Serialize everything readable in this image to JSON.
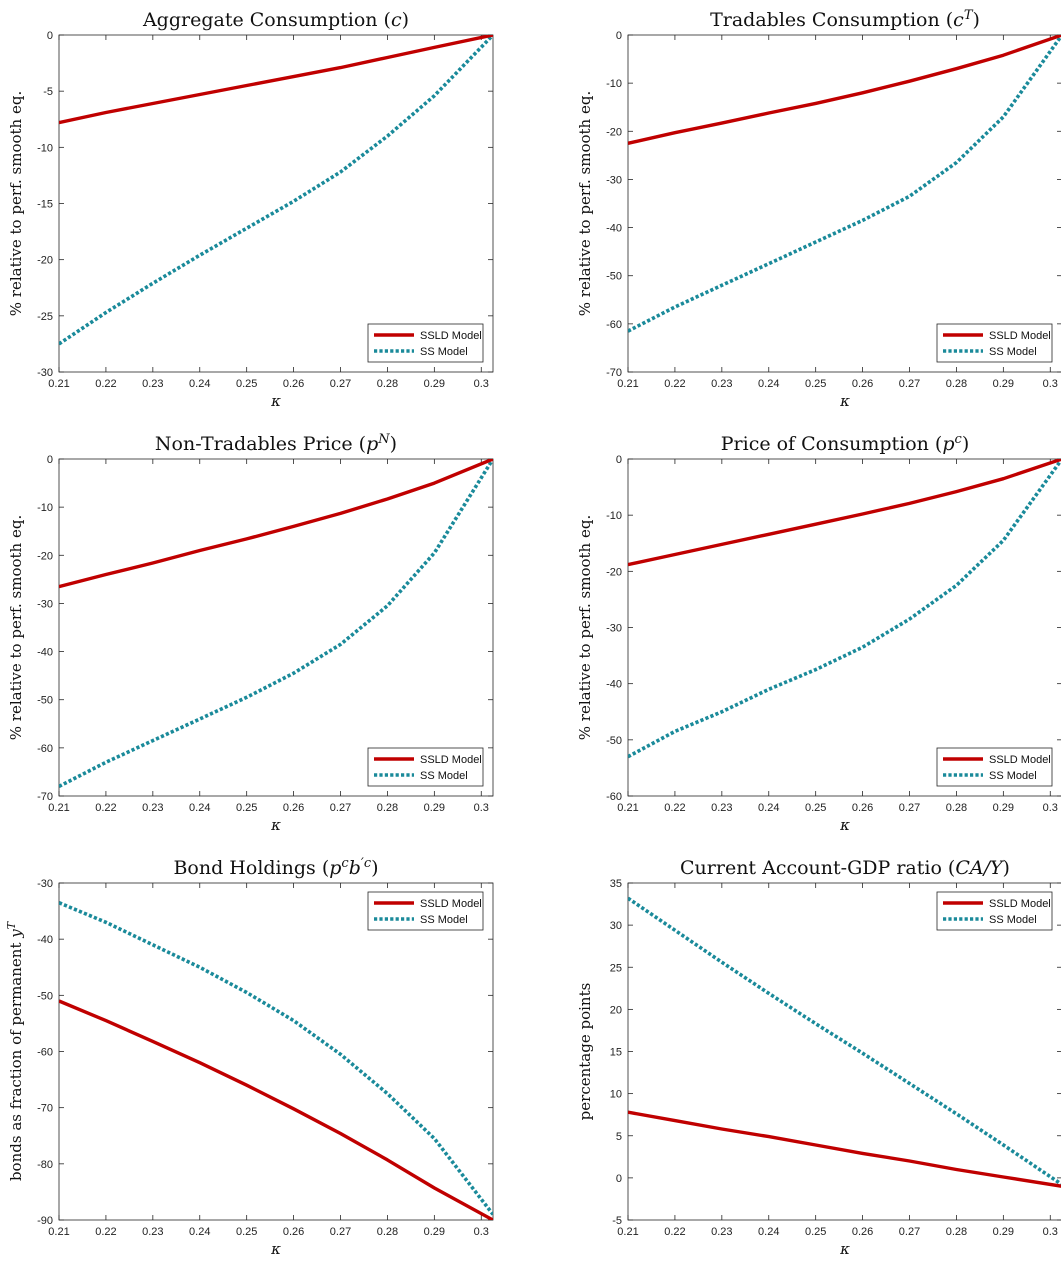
{
  "colors": {
    "sslddark": "#c00000",
    "ss": "#1a8a9a"
  },
  "chart_data": [
    {
      "type": "line",
      "title": "Aggregate Consumption (c)",
      "xlabel": "κ",
      "ylabel": "% relative to perf. smooth eq.",
      "xlim": [
        0.21,
        0.3025
      ],
      "ylim": [
        -30,
        0
      ],
      "x_ticks": [
        "0.21",
        "0.22",
        "0.23",
        "0.24",
        "0.25",
        "0.26",
        "0.27",
        "0.28",
        "0.29",
        "0.3"
      ],
      "y_ticks": [
        "0",
        "-5",
        "-10",
        "-15",
        "-20",
        "-25",
        "-30"
      ],
      "legend": "bottom-right",
      "x": [
        0.21,
        0.22,
        0.23,
        0.24,
        0.25,
        0.26,
        0.27,
        0.28,
        0.29,
        0.3025
      ],
      "series": [
        {
          "name": "SSLD Model",
          "style": "solid",
          "values": [
            -7.8,
            -6.9,
            -6.1,
            -5.3,
            -4.5,
            -3.7,
            -2.9,
            -2.0,
            -1.1,
            0
          ]
        },
        {
          "name": "SS Model",
          "style": "dotted",
          "values": [
            -27.5,
            -24.7,
            -22.1,
            -19.6,
            -17.2,
            -14.8,
            -12.2,
            -9.0,
            -5.4,
            0
          ]
        }
      ]
    },
    {
      "type": "line",
      "title": "Tradables Consumption (cT)",
      "xlabel": "κ",
      "ylabel": "% relative to perf. smooth eq.",
      "xlim": [
        0.21,
        0.3025
      ],
      "ylim": [
        -70,
        0
      ],
      "x_ticks": [
        "0.21",
        "0.22",
        "0.23",
        "0.24",
        "0.25",
        "0.26",
        "0.27",
        "0.28",
        "0.29",
        "0.3"
      ],
      "y_ticks": [
        "0",
        "-10",
        "-20",
        "-30",
        "-40",
        "-50",
        "-60",
        "-70"
      ],
      "legend": "bottom-right",
      "x": [
        0.21,
        0.22,
        0.23,
        0.24,
        0.25,
        0.26,
        0.27,
        0.28,
        0.29,
        0.3025
      ],
      "series": [
        {
          "name": "SSLD Model",
          "style": "solid",
          "values": [
            -22.5,
            -20.3,
            -18.3,
            -16.2,
            -14.2,
            -12.0,
            -9.6,
            -7.0,
            -4.2,
            0
          ]
        },
        {
          "name": "SS Model",
          "style": "dotted",
          "values": [
            -61.5,
            -56.5,
            -52.0,
            -47.5,
            -43.0,
            -38.5,
            -33.5,
            -26.5,
            -17.0,
            0
          ]
        }
      ]
    },
    {
      "type": "line",
      "title": "Non-Tradables Price (pN)",
      "xlabel": "κ",
      "ylabel": "% relative to perf. smooth eq.",
      "xlim": [
        0.21,
        0.3025
      ],
      "ylim": [
        -70,
        0
      ],
      "x_ticks": [
        "0.21",
        "0.22",
        "0.23",
        "0.24",
        "0.25",
        "0.26",
        "0.27",
        "0.28",
        "0.29",
        "0.3"
      ],
      "y_ticks": [
        "0",
        "-10",
        "-20",
        "-30",
        "-40",
        "-50",
        "-60",
        "-70"
      ],
      "legend": "bottom-right",
      "x": [
        0.21,
        0.22,
        0.23,
        0.24,
        0.25,
        0.26,
        0.27,
        0.28,
        0.29,
        0.3025
      ],
      "series": [
        {
          "name": "SSLD Model",
          "style": "solid",
          "values": [
            -26.5,
            -24.0,
            -21.6,
            -19.0,
            -16.6,
            -14.0,
            -11.3,
            -8.3,
            -5.0,
            0
          ]
        },
        {
          "name": "SS Model",
          "style": "dotted",
          "values": [
            -68.0,
            -63.0,
            -58.5,
            -54.0,
            -49.5,
            -44.5,
            -38.5,
            -30.5,
            -19.5,
            0
          ]
        }
      ]
    },
    {
      "type": "line",
      "title": "Price of Consumption (pc)",
      "xlabel": "κ",
      "ylabel": "% relative to perf. smooth eq.",
      "xlim": [
        0.21,
        0.3025
      ],
      "ylim": [
        -60,
        0
      ],
      "x_ticks": [
        "0.21",
        "0.22",
        "0.23",
        "0.24",
        "0.25",
        "0.26",
        "0.27",
        "0.28",
        "0.29",
        "0.3"
      ],
      "y_ticks": [
        "0",
        "-10",
        "-20",
        "-30",
        "-40",
        "-50",
        "-60"
      ],
      "legend": "bottom-right",
      "x": [
        0.21,
        0.22,
        0.23,
        0.24,
        0.25,
        0.26,
        0.27,
        0.28,
        0.29,
        0.3025
      ],
      "series": [
        {
          "name": "SSLD Model",
          "style": "solid",
          "values": [
            -18.8,
            -17.0,
            -15.2,
            -13.4,
            -11.6,
            -9.8,
            -7.9,
            -5.8,
            -3.5,
            0
          ]
        },
        {
          "name": "SS Model",
          "style": "dotted",
          "values": [
            -53.0,
            -48.5,
            -45.0,
            -41.0,
            -37.5,
            -33.5,
            -28.5,
            -22.5,
            -14.5,
            0
          ]
        }
      ]
    },
    {
      "type": "line",
      "title": "Bond Holdings (pcb'c)",
      "xlabel": "κ",
      "ylabel": "bonds as fraction of permanent yT",
      "xlim": [
        0.21,
        0.3025
      ],
      "ylim": [
        -90,
        -30
      ],
      "x_ticks": [
        "0.21",
        "0.22",
        "0.23",
        "0.24",
        "0.25",
        "0.26",
        "0.27",
        "0.28",
        "0.29",
        "0.3"
      ],
      "y_ticks": [
        "-30",
        "-40",
        "-50",
        "-60",
        "-70",
        "-80",
        "-90"
      ],
      "legend": "top-right",
      "x": [
        0.21,
        0.22,
        0.23,
        0.24,
        0.25,
        0.26,
        0.27,
        0.28,
        0.29,
        0.3025
      ],
      "series": [
        {
          "name": "SSLD Model",
          "style": "solid",
          "values": [
            -51.0,
            -54.5,
            -58.2,
            -62.0,
            -66.0,
            -70.2,
            -74.6,
            -79.3,
            -84.3,
            -90.0
          ]
        },
        {
          "name": "SS Model",
          "style": "dotted",
          "values": [
            -33.5,
            -37.0,
            -41.0,
            -45.0,
            -49.5,
            -54.5,
            -60.5,
            -67.5,
            -75.5,
            -89.0
          ]
        }
      ]
    },
    {
      "type": "line",
      "title": "Current Account-GDP ratio (CA/Y)",
      "xlabel": "κ",
      "ylabel": "percentage points",
      "xlim": [
        0.21,
        0.3025
      ],
      "ylim": [
        -5,
        35
      ],
      "x_ticks": [
        "0.21",
        "0.22",
        "0.23",
        "0.24",
        "0.25",
        "0.26",
        "0.27",
        "0.28",
        "0.29",
        "0.3"
      ],
      "y_ticks": [
        "35",
        "30",
        "25",
        "20",
        "15",
        "10",
        "5",
        "0",
        "-5"
      ],
      "legend": "top-right",
      "x": [
        0.21,
        0.22,
        0.23,
        0.24,
        0.25,
        0.26,
        0.27,
        0.28,
        0.29,
        0.3025
      ],
      "series": [
        {
          "name": "SSLD Model",
          "style": "solid",
          "values": [
            7.8,
            6.8,
            5.8,
            4.9,
            3.9,
            2.9,
            2.0,
            1.0,
            0.1,
            -1.0
          ]
        },
        {
          "name": "SS Model",
          "style": "dotted",
          "values": [
            33.2,
            29.4,
            25.6,
            21.9,
            18.3,
            14.8,
            11.2,
            7.6,
            3.9,
            -0.8
          ]
        }
      ]
    }
  ]
}
